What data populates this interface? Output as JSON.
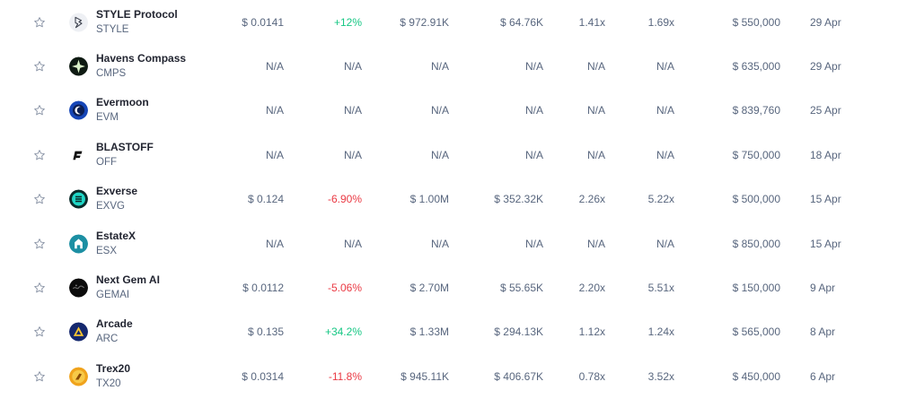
{
  "rows": [
    {
      "name": "STYLE Protocol",
      "symbol": "STYLE",
      "logo": "style-logo-icon",
      "price": "$ 0.0141",
      "change": "+12%",
      "change_dir": "pos",
      "market_cap": "$ 972.91K",
      "volume": "$ 64.76K",
      "roi_1": "1.41x",
      "roi_2": "1.69x",
      "raised": "$ 550,000",
      "date": "29 Apr"
    },
    {
      "name": "Havens Compass",
      "symbol": "CMPS",
      "logo": "compass-logo-icon",
      "price": "N/A",
      "change": "N/A",
      "change_dir": "none",
      "market_cap": "N/A",
      "volume": "N/A",
      "roi_1": "N/A",
      "roi_2": "N/A",
      "raised": "$ 635,000",
      "date": "29 Apr"
    },
    {
      "name": "Evermoon",
      "symbol": "EVM",
      "logo": "evermoon-logo-icon",
      "price": "N/A",
      "change": "N/A",
      "change_dir": "none",
      "market_cap": "N/A",
      "volume": "N/A",
      "roi_1": "N/A",
      "roi_2": "N/A",
      "raised": "$ 839,760",
      "date": "25 Apr"
    },
    {
      "name": "BLASTOFF",
      "symbol": "OFF",
      "logo": "blastoff-logo-icon",
      "price": "N/A",
      "change": "N/A",
      "change_dir": "none",
      "market_cap": "N/A",
      "volume": "N/A",
      "roi_1": "N/A",
      "roi_2": "N/A",
      "raised": "$ 750,000",
      "date": "18 Apr"
    },
    {
      "name": "Exverse",
      "symbol": "EXVG",
      "logo": "exverse-logo-icon",
      "price": "$ 0.124",
      "change": "-6.90%",
      "change_dir": "neg",
      "market_cap": "$ 1.00M",
      "volume": "$ 352.32K",
      "roi_1": "2.26x",
      "roi_2": "5.22x",
      "raised": "$ 500,000",
      "date": "15 Apr"
    },
    {
      "name": "EstateX",
      "symbol": "ESX",
      "logo": "estatex-logo-icon",
      "price": "N/A",
      "change": "N/A",
      "change_dir": "none",
      "market_cap": "N/A",
      "volume": "N/A",
      "roi_1": "N/A",
      "roi_2": "N/A",
      "raised": "$ 850,000",
      "date": "15 Apr"
    },
    {
      "name": "Next Gem AI",
      "symbol": "GEMAI",
      "logo": "gemai-logo-icon",
      "price": "$ 0.0112",
      "change": "-5.06%",
      "change_dir": "neg",
      "market_cap": "$ 2.70M",
      "volume": "$ 55.65K",
      "roi_1": "2.20x",
      "roi_2": "5.51x",
      "raised": "$ 150,000",
      "date": "9 Apr"
    },
    {
      "name": "Arcade",
      "symbol": "ARC",
      "logo": "arcade-logo-icon",
      "price": "$ 0.135",
      "change": "+34.2%",
      "change_dir": "pos",
      "market_cap": "$ 1.33M",
      "volume": "$ 294.13K",
      "roi_1": "1.12x",
      "roi_2": "1.24x",
      "raised": "$ 565,000",
      "date": "8 Apr"
    },
    {
      "name": "Trex20",
      "symbol": "TX20",
      "logo": "trex20-logo-icon",
      "price": "$ 0.0314",
      "change": "-11.8%",
      "change_dir": "neg",
      "market_cap": "$ 945.11K",
      "volume": "$ 406.67K",
      "roi_1": "0.78x",
      "roi_2": "3.52x",
      "raised": "$ 450,000",
      "date": "6 Apr"
    }
  ],
  "colors": {
    "positive": "#16c784",
    "negative": "#ea3943",
    "text": "#58667e",
    "name": "#222531"
  }
}
